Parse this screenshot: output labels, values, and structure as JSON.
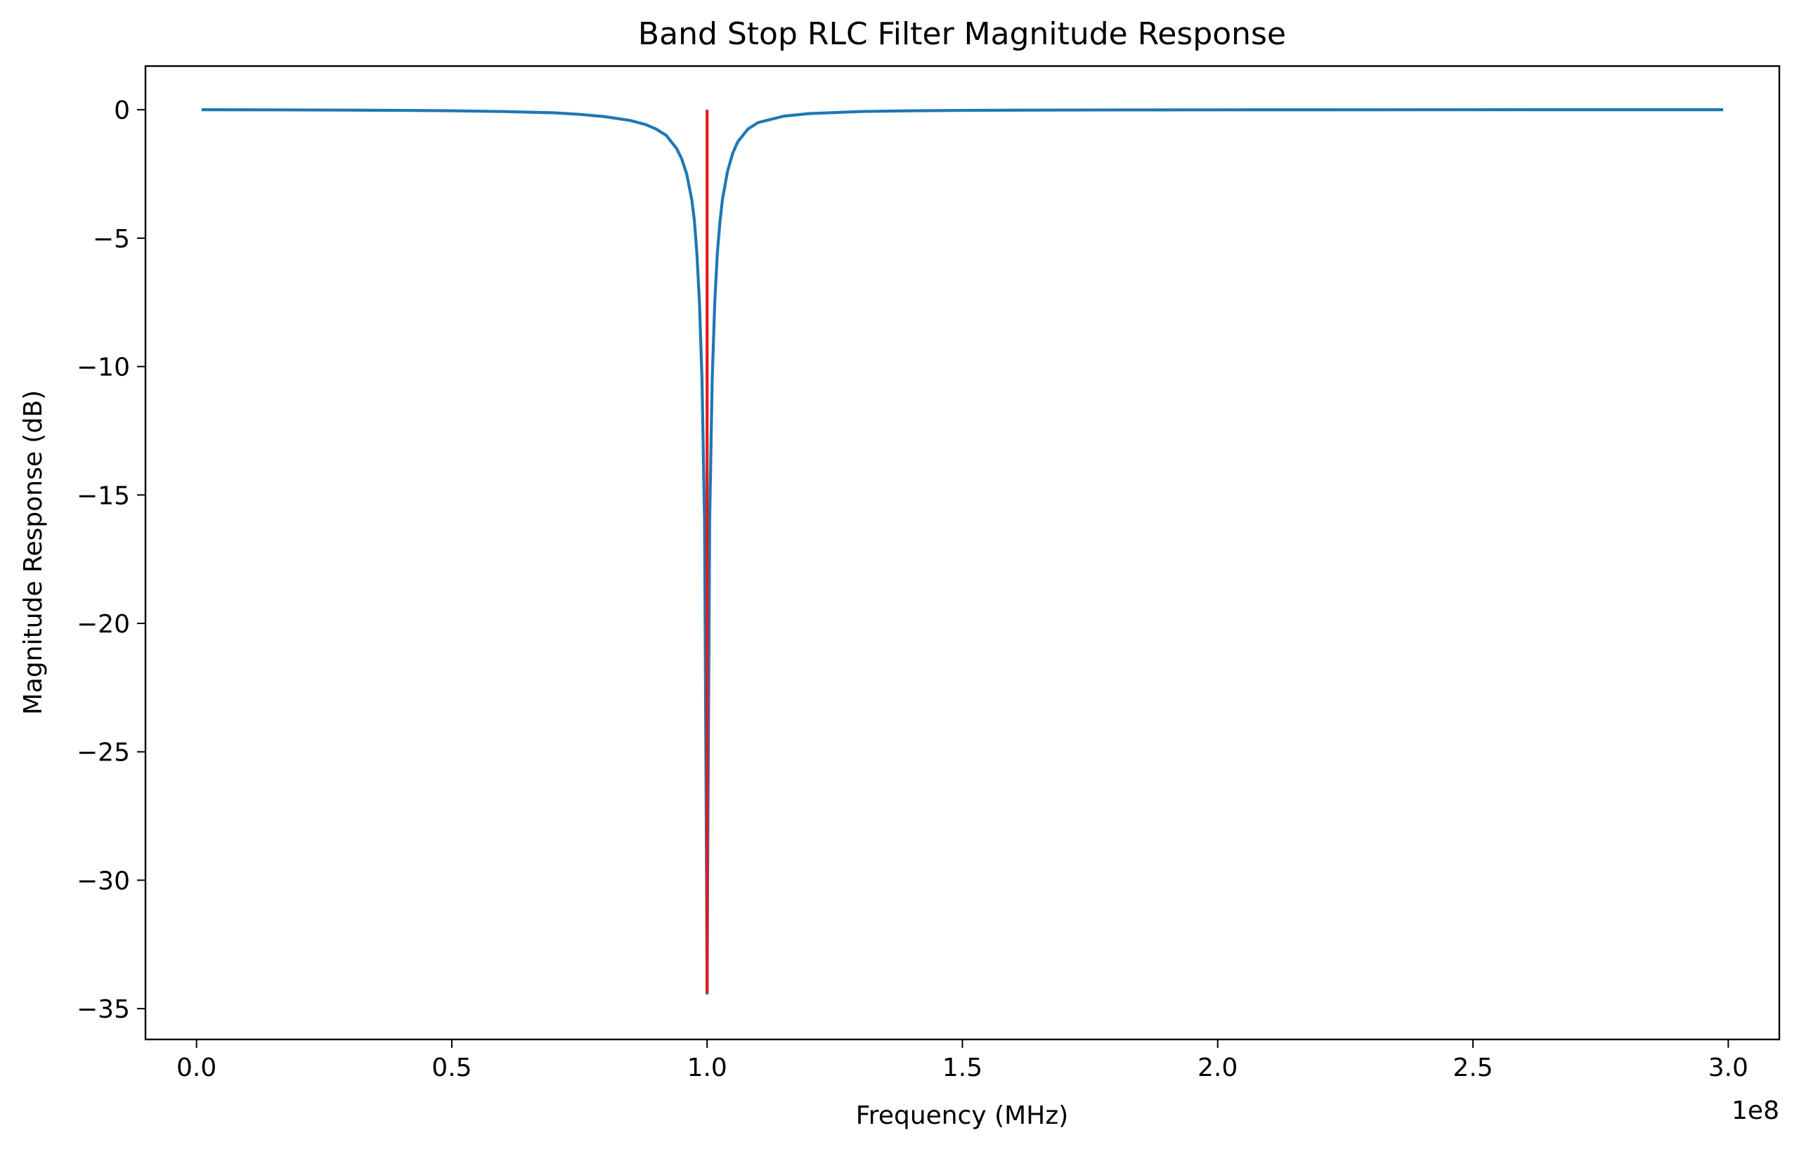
{
  "chart_data": {
    "type": "line",
    "title": "Band Stop RLC Filter Magnitude Response",
    "xlabel": "Frequency (MHz)",
    "ylabel": "Magnitude Response (dB)",
    "x_offset_text": "1e8",
    "xlim": [
      -0.1,
      3.1
    ],
    "ylim": [
      -36.2,
      1.7
    ],
    "x_ticks": [
      0.0,
      0.5,
      1.0,
      1.5,
      2.0,
      2.5,
      3.0
    ],
    "x_tick_labels": [
      "0.0",
      "0.5",
      "1.0",
      "1.5",
      "2.0",
      "2.5",
      "3.0"
    ],
    "y_ticks": [
      0,
      -5,
      -10,
      -15,
      -20,
      -25,
      -30,
      -35
    ],
    "y_tick_labels": [
      "0",
      "−5",
      "−10",
      "−15",
      "−20",
      "−25",
      "−30",
      "−35"
    ],
    "grid": false,
    "legend": "none",
    "series": [
      {
        "color": "#1f77b4",
        "x": [
          0.01,
          0.1,
          0.2,
          0.3,
          0.4,
          0.5,
          0.6,
          0.7,
          0.75,
          0.8,
          0.85,
          0.88,
          0.9,
          0.92,
          0.94,
          0.95,
          0.96,
          0.97,
          0.975,
          0.98,
          0.985,
          0.99,
          0.995,
          0.999,
          1.0,
          1.001,
          1.005,
          1.01,
          1.015,
          1.02,
          1.025,
          1.03,
          1.04,
          1.05,
          1.06,
          1.08,
          1.1,
          1.15,
          1.2,
          1.3,
          1.4,
          1.5,
          1.6,
          1.8,
          2.0,
          2.2,
          2.4,
          2.6,
          2.8,
          2.99
        ],
        "y": [
          0,
          -0.003,
          -0.008,
          -0.015,
          -0.025,
          -0.04,
          -0.07,
          -0.12,
          -0.18,
          -0.27,
          -0.42,
          -0.58,
          -0.75,
          -1.0,
          -1.5,
          -1.9,
          -2.5,
          -3.5,
          -4.3,
          -5.6,
          -7.5,
          -10.5,
          -16,
          -30,
          -34.4,
          -30,
          -16,
          -10.5,
          -7.5,
          -5.6,
          -4.4,
          -3.5,
          -2.4,
          -1.7,
          -1.25,
          -0.75,
          -0.5,
          -0.25,
          -0.15,
          -0.07,
          -0.04,
          -0.025,
          -0.017,
          -0.009,
          -0.005,
          -0.003,
          -0.002,
          -0.001,
          -0.001,
          -0.0005
        ]
      }
    ],
    "marker_line": {
      "color": "#e41a1c",
      "x": 1.0,
      "y": [
        0,
        -34.4
      ]
    }
  }
}
